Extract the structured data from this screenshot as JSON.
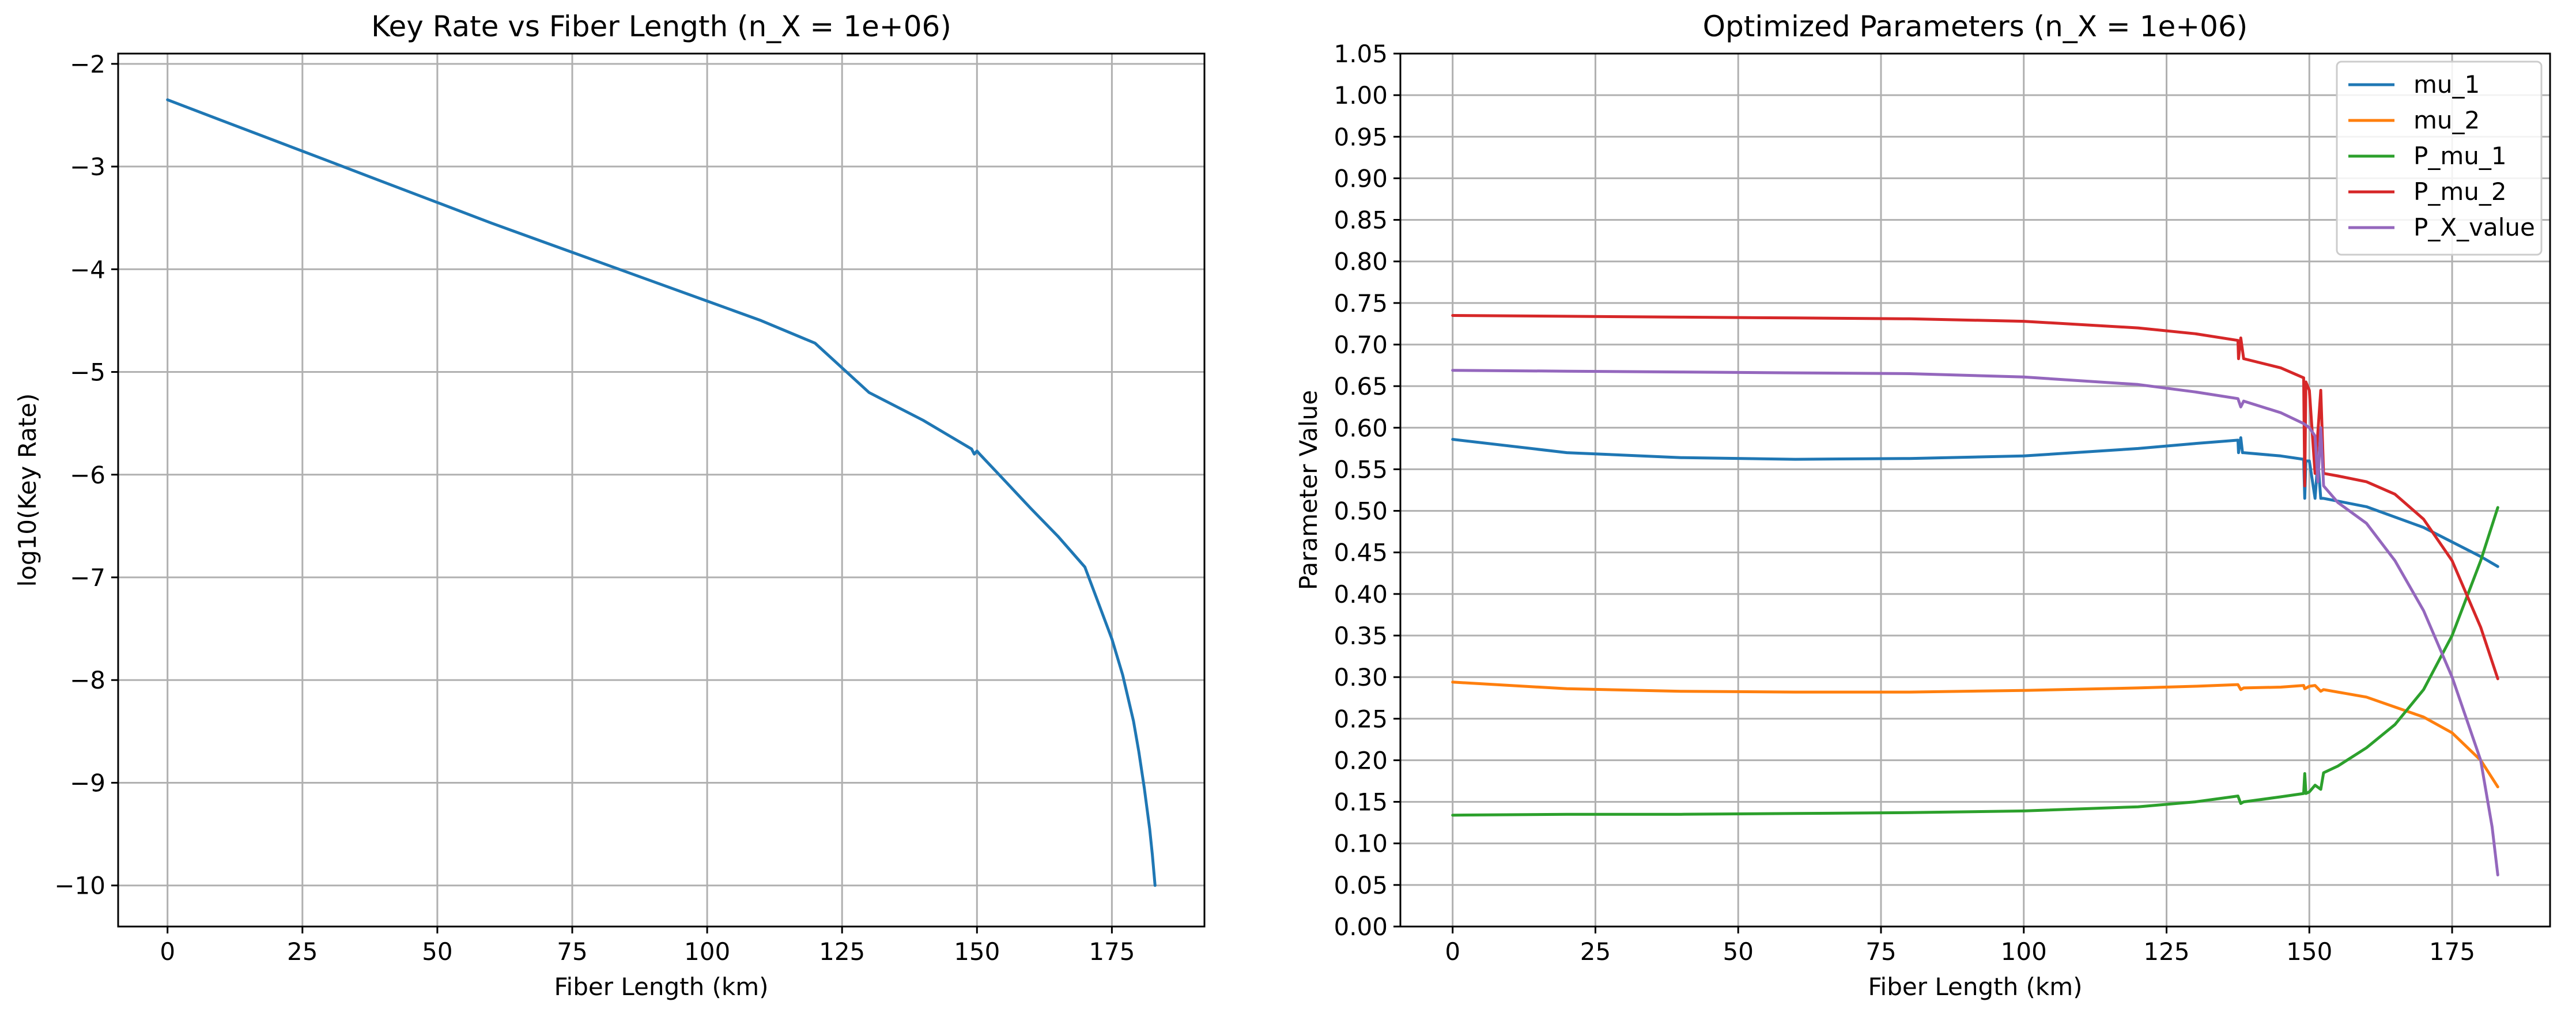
{
  "chart_data": [
    {
      "type": "line",
      "title": "Key Rate vs Fiber Length (n_X = 1e+06)",
      "xlabel": "Fiber Length (km)",
      "ylabel": "log10(Key Rate)",
      "xlim": [
        -9.15,
        192.15
      ],
      "ylim": [
        -10.4,
        -1.9
      ],
      "xticks": [
        "0",
        "25",
        "50",
        "75",
        "100",
        "125",
        "150",
        "175"
      ],
      "xtick_values": [
        0,
        25,
        50,
        75,
        100,
        125,
        150,
        175
      ],
      "yticks": [
        "−2",
        "−3",
        "−4",
        "−5",
        "−6",
        "−7",
        "−8",
        "−9",
        "−10"
      ],
      "ytick_values": [
        -2,
        -3,
        -4,
        -5,
        -6,
        -7,
        -8,
        -9,
        -10
      ],
      "grid": true,
      "series": [
        {
          "color": "#1f77b4",
          "x": [
            0,
            10,
            20,
            30,
            40,
            50,
            60,
            70,
            80,
            90,
            100,
            110,
            120,
            130,
            140,
            149,
            149.5,
            150,
            150.5,
            155,
            160,
            165,
            170,
            175,
            177,
            179,
            180,
            181,
            182,
            182.5,
            183
          ],
          "y": [
            -2.35,
            -2.55,
            -2.75,
            -2.95,
            -3.15,
            -3.35,
            -3.55,
            -3.74,
            -3.93,
            -4.12,
            -4.31,
            -4.5,
            -4.72,
            -5.2,
            -5.47,
            -5.75,
            -5.8,
            -5.77,
            -5.8,
            -6.05,
            -6.33,
            -6.6,
            -6.9,
            -7.6,
            -7.95,
            -8.4,
            -8.7,
            -9.05,
            -9.45,
            -9.7,
            -10.0
          ]
        }
      ]
    },
    {
      "type": "line",
      "title": "Optimized Parameters (n_X = 1e+06)",
      "xlabel": "Fiber Length (km)",
      "ylabel": "Parameter Value",
      "xlim": [
        -9.15,
        192.15
      ],
      "ylim": [
        0,
        1.05
      ],
      "xticks": [
        "0",
        "25",
        "50",
        "75",
        "100",
        "125",
        "150",
        "175"
      ],
      "xtick_values": [
        0,
        25,
        50,
        75,
        100,
        125,
        150,
        175
      ],
      "yticks": [
        "0.00",
        "0.05",
        "0.10",
        "0.15",
        "0.20",
        "0.25",
        "0.30",
        "0.35",
        "0.40",
        "0.45",
        "0.50",
        "0.55",
        "0.60",
        "0.65",
        "0.70",
        "0.75",
        "0.80",
        "0.85",
        "0.90",
        "0.95",
        "1.00",
        "1.05"
      ],
      "ytick_values": [
        0,
        0.05,
        0.1,
        0.15,
        0.2,
        0.25,
        0.3,
        0.35,
        0.4,
        0.45,
        0.5,
        0.55,
        0.6,
        0.65,
        0.7,
        0.75,
        0.8,
        0.85,
        0.9,
        0.95,
        1.0,
        1.05
      ],
      "grid": true,
      "legend": "top-right",
      "series": [
        {
          "name": "mu_1",
          "color": "#1f77b4",
          "x": [
            0,
            20,
            40,
            60,
            80,
            100,
            120,
            130,
            137.5,
            137.6,
            138,
            138.3,
            138.5,
            145,
            149,
            149.2,
            149.4,
            150,
            151,
            151.5,
            152,
            152.5,
            160,
            170,
            180,
            183
          ],
          "y": [
            0.586,
            0.57,
            0.564,
            0.562,
            0.563,
            0.566,
            0.575,
            0.581,
            0.585,
            0.57,
            0.588,
            0.57,
            0.57,
            0.566,
            0.562,
            0.515,
            0.56,
            0.56,
            0.515,
            0.56,
            0.515,
            0.515,
            0.505,
            0.48,
            0.445,
            0.433
          ]
        },
        {
          "name": "mu_2",
          "color": "#ff7f0e",
          "x": [
            0,
            20,
            40,
            60,
            80,
            100,
            120,
            130,
            137.5,
            138,
            138.5,
            145,
            149,
            149.2,
            150,
            151,
            152,
            152.5,
            160,
            170,
            175,
            180,
            183
          ],
          "y": [
            0.294,
            0.286,
            0.283,
            0.282,
            0.282,
            0.284,
            0.287,
            0.289,
            0.291,
            0.285,
            0.287,
            0.288,
            0.29,
            0.286,
            0.289,
            0.29,
            0.283,
            0.285,
            0.276,
            0.252,
            0.233,
            0.2,
            0.168
          ]
        },
        {
          "name": "P_mu_1",
          "color": "#2ca02c",
          "x": [
            0,
            20,
            40,
            60,
            80,
            100,
            120,
            130,
            137.5,
            138,
            138.5,
            145,
            149,
            149.2,
            149.4,
            150,
            151,
            152,
            152.5,
            155,
            160,
            165,
            170,
            175,
            180,
            183
          ],
          "y": [
            0.134,
            0.135,
            0.135,
            0.136,
            0.137,
            0.139,
            0.144,
            0.15,
            0.157,
            0.148,
            0.15,
            0.156,
            0.16,
            0.184,
            0.16,
            0.162,
            0.17,
            0.165,
            0.185,
            0.193,
            0.215,
            0.243,
            0.285,
            0.35,
            0.44,
            0.504
          ]
        },
        {
          "name": "P_mu_2",
          "color": "#d62728",
          "x": [
            0,
            20,
            40,
            60,
            80,
            100,
            120,
            130,
            137.5,
            137.6,
            138,
            138.5,
            145,
            149,
            149.2,
            149.4,
            150,
            151,
            152,
            152.5,
            155,
            160,
            165,
            170,
            175,
            180,
            183
          ],
          "y": [
            0.735,
            0.734,
            0.733,
            0.732,
            0.731,
            0.728,
            0.72,
            0.713,
            0.705,
            0.683,
            0.708,
            0.683,
            0.672,
            0.66,
            0.53,
            0.655,
            0.645,
            0.545,
            0.645,
            0.545,
            0.542,
            0.535,
            0.52,
            0.49,
            0.44,
            0.36,
            0.298
          ]
        },
        {
          "name": "P_X_value",
          "color": "#9467bd",
          "x": [
            0,
            20,
            40,
            60,
            80,
            100,
            120,
            130,
            137.5,
            138,
            138.5,
            145,
            149,
            150,
            151,
            151.5,
            152,
            152.5,
            155,
            160,
            165,
            170,
            175,
            180,
            182,
            183
          ],
          "y": [
            0.669,
            0.668,
            0.667,
            0.666,
            0.665,
            0.661,
            0.652,
            0.643,
            0.635,
            0.625,
            0.632,
            0.618,
            0.605,
            0.6,
            0.59,
            0.535,
            0.6,
            0.53,
            0.51,
            0.485,
            0.44,
            0.38,
            0.3,
            0.2,
            0.12,
            0.062
          ]
        }
      ]
    }
  ]
}
